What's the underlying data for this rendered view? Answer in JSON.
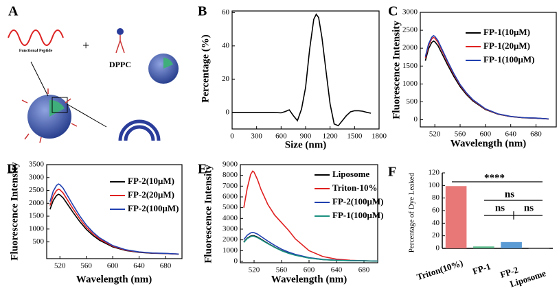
{
  "diagram": {
    "panel": "A",
    "peptide_label": "Functional Peptide",
    "plus": "+",
    "lipid_label": "DPPC"
  },
  "chart_data": [
    {
      "type": "line",
      "panel": "B",
      "xlabel": "Size (nm)",
      "ylabel": "Percentage (%)",
      "x": [
        0,
        100,
        200,
        300,
        400,
        500,
        600,
        650,
        700,
        750,
        800,
        850,
        900,
        950,
        1000,
        1030,
        1060,
        1100,
        1150,
        1200,
        1250,
        1300,
        1350,
        1400,
        1450,
        1500,
        1550,
        1600,
        1650,
        1700
      ],
      "series": [
        {
          "name": null,
          "color": "#000000",
          "values": [
            0,
            0,
            0,
            0,
            0,
            0,
            -0.3,
            0.5,
            1.5,
            -2,
            -5,
            2,
            15,
            38,
            56,
            59,
            57,
            45,
            25,
            5,
            -7,
            -8,
            -5,
            -2,
            0.3,
            1,
            1,
            0.7,
            0,
            -0.5
          ]
        }
      ],
      "xlim": [
        0,
        1800
      ],
      "xticks": [
        0,
        300,
        600,
        900,
        1200,
        1500,
        1800
      ],
      "ylim": [
        -10,
        61
      ],
      "yticks": [
        0,
        20,
        40,
        60
      ]
    },
    {
      "type": "line",
      "panel": "C",
      "xlabel": "Wavelength (nm)",
      "ylabel": "Fluorescence Intensity",
      "x": [
        505,
        510,
        515,
        518,
        520,
        525,
        530,
        540,
        550,
        560,
        570,
        580,
        600,
        620,
        640,
        660,
        680,
        700
      ],
      "series": [
        {
          "name": "FP-1(10μM)",
          "color": "#000000",
          "values": [
            1650,
            1980,
            2156,
            2200,
            2178,
            2068,
            1892,
            1540,
            1210,
            924,
            704,
            528,
            286,
            154,
            88,
            55,
            44,
            22
          ]
        },
        {
          "name": "FP-1(20μM)",
          "color": "#e02020",
          "values": [
            1725,
            2070,
            2254,
            2300,
            2277,
            2162,
            1978,
            1610,
            1265,
            966,
            736,
            552,
            299,
            161,
            92,
            58,
            46,
            23
          ]
        },
        {
          "name": "FP-1(100μM)",
          "color": "#2040b0",
          "values": [
            1763,
            2115,
            2303,
            2350,
            2327,
            2209,
            2021,
            1645,
            1293,
            987,
            752,
            564,
            306,
            165,
            94,
            59,
            47,
            24
          ]
        }
      ],
      "xlim": [
        497,
        712
      ],
      "xticks": [
        520,
        560,
        600,
        640,
        680
      ],
      "ylim": [
        -200,
        3000
      ],
      "yticks": [
        0,
        500,
        1000,
        1500,
        2000,
        2500,
        3000
      ]
    },
    {
      "type": "line",
      "panel": "D",
      "xlabel": "Wavelength (nm)",
      "ylabel": "Fluorescence Intensity",
      "x": [
        505,
        510,
        515,
        518,
        520,
        525,
        530,
        540,
        550,
        560,
        570,
        580,
        600,
        620,
        640,
        660,
        680,
        700
      ],
      "series": [
        {
          "name": "FP-2(10μM)",
          "color": "#000000",
          "values": [
            1763,
            2115,
            2303,
            2350,
            2327,
            2209,
            2021,
            1645,
            1293,
            987,
            752,
            564,
            306,
            165,
            94,
            59,
            47,
            24
          ]
        },
        {
          "name": "FP-2(20μM)",
          "color": "#e02020",
          "values": [
            1913,
            2295,
            2499,
            2550,
            2525,
            2397,
            2193,
            1785,
            1403,
            1071,
            816,
            612,
            332,
            179,
            102,
            64,
            51,
            26
          ]
        },
        {
          "name": "FP-2(100μM)",
          "color": "#2040b0",
          "values": [
            2063,
            2475,
            2695,
            2750,
            2723,
            2585,
            2365,
            1925,
            1513,
            1155,
            880,
            660,
            358,
            193,
            110,
            69,
            55,
            28
          ]
        }
      ],
      "xlim": [
        500,
        705
      ],
      "xticks": [
        520,
        560,
        600,
        640,
        680
      ],
      "ylim": [
        -150,
        3500
      ],
      "yticks": [
        500,
        1000,
        1500,
        2000,
        2500,
        3000,
        3500
      ]
    },
    {
      "type": "line",
      "panel": "E",
      "xlabel": "Wavelength (nm)",
      "ylabel": "Fluorescence Intensity",
      "x": [
        505,
        510,
        515,
        518,
        520,
        525,
        530,
        540,
        550,
        560,
        570,
        580,
        600,
        620,
        640,
        660,
        680,
        700
      ],
      "series": [
        {
          "name": "Liposome",
          "color": "#000000",
          "values": [
            1800,
            2160,
            2352,
            2400,
            2376,
            2256,
            2064,
            1680,
            1320,
            1008,
            768,
            576,
            312,
            168,
            96,
            60,
            48,
            24
          ]
        },
        {
          "name": "Triton-10%",
          "color": "#e02020",
          "values": [
            5000,
            6800,
            8100,
            8400,
            8300,
            7600,
            6700,
            5300,
            4300,
            3600,
            2900,
            2100,
            1000,
            450,
            200,
            100,
            60,
            30
          ]
        },
        {
          "name": "FP-2(100μM)",
          "color": "#2040b0",
          "values": [
            2025,
            2430,
            2646,
            2700,
            2673,
            2538,
            2322,
            1890,
            1485,
            1134,
            864,
            648,
            351,
            189,
            108,
            68,
            54,
            27
          ]
        },
        {
          "name": "FP-1(100μM)",
          "color": "#1a9080",
          "values": [
            1763,
            2115,
            2303,
            2350,
            2327,
            2209,
            2021,
            1645,
            1293,
            987,
            752,
            564,
            306,
            165,
            94,
            59,
            47,
            24
          ]
        }
      ],
      "xlim": [
        500,
        700
      ],
      "xticks": [
        520,
        560,
        600,
        640,
        680
      ],
      "ylim": [
        -130,
        9000
      ],
      "yticks": [
        0,
        1000,
        2000,
        3000,
        4000,
        5000,
        6000,
        7000,
        8000,
        9000
      ]
    },
    {
      "type": "bar",
      "panel": "F",
      "ylabel": "Percentage of Dye Leaked",
      "categories": [
        "Triton(10%)",
        "FP-1",
        "FP-2",
        "Liposome"
      ],
      "values": [
        99,
        3,
        10,
        2
      ],
      "colors": [
        "#e87878",
        "#5cb88a",
        "#5b9bd5",
        "#d4d4d4"
      ],
      "ylim": [
        0,
        120
      ],
      "yticks": [
        0,
        20,
        40,
        60,
        80,
        100,
        120
      ],
      "annotations": [
        "****",
        "ns",
        "ns",
        "ns"
      ]
    }
  ]
}
